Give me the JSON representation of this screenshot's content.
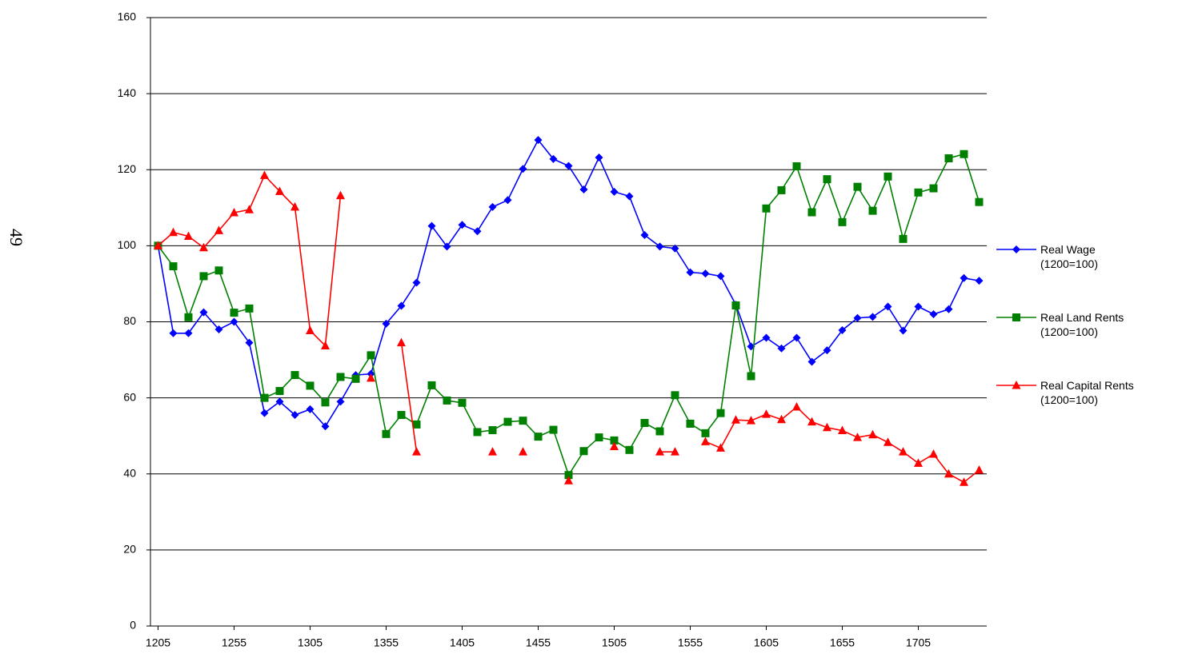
{
  "page_number": "49",
  "chart_data": {
    "type": "line",
    "x": [
      1205,
      1215,
      1225,
      1235,
      1245,
      1255,
      1265,
      1275,
      1285,
      1295,
      1305,
      1315,
      1325,
      1335,
      1345,
      1355,
      1365,
      1375,
      1385,
      1395,
      1405,
      1415,
      1425,
      1435,
      1445,
      1455,
      1465,
      1475,
      1485,
      1495,
      1505,
      1515,
      1525,
      1535,
      1545,
      1555,
      1565,
      1575,
      1585,
      1595,
      1605,
      1615,
      1625,
      1635,
      1645,
      1655,
      1665,
      1675,
      1685,
      1695,
      1705,
      1715,
      1725,
      1735,
      1745
    ],
    "series": [
      {
        "name": "Real Wage\n(1200=100)",
        "color": "#0000ff",
        "marker": "diamond",
        "values": [
          100,
          77,
          77,
          82.5,
          78,
          80,
          74.5,
          56,
          59,
          55.5,
          57,
          52.5,
          59,
          66,
          66.3,
          79.5,
          84.2,
          90.3,
          105.2,
          99.8,
          105.5,
          103.8,
          110.2,
          112,
          120.2,
          127.8,
          122.8,
          121,
          114.8,
          123.2,
          114.2,
          113,
          102.8,
          99.8,
          99.3,
          93,
          92.7,
          92,
          84.5,
          73.5,
          75.8,
          73,
          75.8,
          69.5,
          72.5,
          77.8,
          81,
          81.3,
          84,
          77.7,
          84,
          82,
          83.3,
          91.5,
          90.8
        ]
      },
      {
        "name": "Real Land Rents\n(1200=100)",
        "color": "#008000",
        "marker": "square",
        "values": [
          100,
          94.6,
          81.2,
          92,
          93.5,
          82.4,
          83.5,
          60,
          61.8,
          66,
          63.2,
          58.8,
          65.5,
          65,
          71.2,
          50.5,
          55.5,
          53,
          63.3,
          59.3,
          58.7,
          51,
          51.5,
          53.7,
          54,
          49.8,
          51.6,
          39.7,
          46,
          49.6,
          48.8,
          46.3,
          53.4,
          51.2,
          60.7,
          53.2,
          50.7,
          56,
          84.3,
          65.7,
          109.8,
          114.6,
          120.9,
          108.8,
          117.5,
          106.2,
          115.5,
          109.2,
          118.2,
          101.8,
          114,
          115.1,
          123,
          124.1,
          111.5
        ]
      },
      {
        "name": "Real Capital Rents\n(1200=100)",
        "color": "#ff0000",
        "marker": "triangle",
        "values": [
          100,
          103.5,
          102.5,
          99.5,
          104,
          108.7,
          109.5,
          118.5,
          114.3,
          110.2,
          77.7,
          73.7,
          113.2,
          null,
          65.2,
          null,
          74.5,
          45.8,
          null,
          null,
          null,
          null,
          45.8,
          null,
          45.8,
          null,
          null,
          38.2,
          null,
          null,
          47.2,
          null,
          null,
          45.8,
          45.8,
          null,
          48.5,
          46.8,
          54.2,
          54,
          55.7,
          54.3,
          57.6,
          53.7,
          52.2,
          51.4,
          49.6,
          50.3,
          48.3,
          45.8,
          42.8,
          45.2,
          40,
          37.8,
          41
        ]
      }
    ],
    "xlim": [
      1200,
      1750
    ],
    "xticks": [
      1205,
      1255,
      1305,
      1355,
      1405,
      1455,
      1505,
      1555,
      1605,
      1655,
      1705
    ],
    "ylim": [
      0,
      160
    ],
    "yticks": [
      0,
      20,
      40,
      60,
      80,
      100,
      120,
      140,
      160
    ],
    "grid": true,
    "legend": "right"
  }
}
